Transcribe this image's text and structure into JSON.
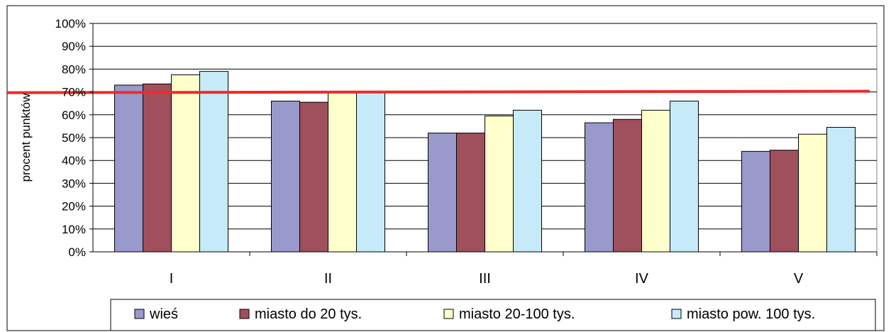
{
  "chart_data": {
    "type": "bar",
    "categories": [
      "I",
      "II",
      "III",
      "IV",
      "V"
    ],
    "series": [
      {
        "name": "wieś",
        "color": "#9999cc",
        "values": [
          73,
          66,
          52,
          56.5,
          44
        ]
      },
      {
        "name": "miasto do 20 tys.",
        "color": "#a04f5c",
        "values": [
          73.5,
          65.5,
          52,
          58,
          44.5
        ]
      },
      {
        "name": "miasto 20-100 tys.",
        "color": "#ffffcc",
        "values": [
          77.5,
          70,
          59.5,
          62,
          51.5
        ]
      },
      {
        "name": "miasto pow. 100 tys.",
        "color": "#c6eaf7",
        "values": [
          79,
          70,
          62,
          66,
          54.5
        ]
      }
    ],
    "reference_line": {
      "value": 70,
      "color": "#ee2a2a"
    },
    "ylabel": "procent punktów",
    "xlabel": "",
    "ylim": [
      0,
      100
    ],
    "yticks": [
      "0%",
      "10%",
      "20%",
      "30%",
      "40%",
      "50%",
      "60%",
      "70%",
      "80%",
      "90%",
      "100%"
    ],
    "grid": true,
    "legend_position": "bottom"
  }
}
